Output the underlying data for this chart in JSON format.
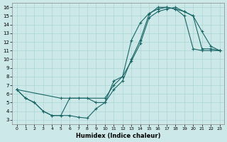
{
  "xlabel": "Humidex (Indice chaleur)",
  "bg_color": "#cce8e8",
  "line_color": "#1a6666",
  "grid_color": "#aad4d4",
  "xlim": [
    -0.5,
    23.5
  ],
  "ylim": [
    2.5,
    16.5
  ],
  "xticks": [
    0,
    1,
    2,
    3,
    4,
    5,
    6,
    7,
    8,
    9,
    10,
    11,
    12,
    13,
    14,
    15,
    16,
    17,
    18,
    19,
    20,
    21,
    22,
    23
  ],
  "yticks": [
    3,
    4,
    5,
    6,
    7,
    8,
    9,
    10,
    11,
    12,
    13,
    14,
    15,
    16
  ],
  "line1_x": [
    0,
    1,
    2,
    3,
    4,
    5,
    6,
    7,
    8,
    9,
    10,
    11,
    12,
    13,
    14,
    15,
    16,
    17,
    18,
    19,
    20,
    21,
    22,
    23
  ],
  "line1_y": [
    6.5,
    5.5,
    5.0,
    4.0,
    3.5,
    3.5,
    5.5,
    5.5,
    5.5,
    5.0,
    5.0,
    7.5,
    8.0,
    12.2,
    14.2,
    15.3,
    15.8,
    16.0,
    15.8,
    15.5,
    15.0,
    13.2,
    11.5,
    11.0
  ],
  "line2_x": [
    0,
    1,
    2,
    3,
    4,
    5,
    6,
    7,
    8,
    9,
    10,
    11,
    12,
    13,
    14,
    15,
    16,
    17,
    18,
    19,
    20,
    21,
    22,
    23
  ],
  "line2_y": [
    6.5,
    5.5,
    5.0,
    4.0,
    3.5,
    3.5,
    3.5,
    3.3,
    3.2,
    4.3,
    5.0,
    6.5,
    7.5,
    10.0,
    12.2,
    15.2,
    16.0,
    16.0,
    15.8,
    15.0,
    11.2,
    11.0,
    11.0,
    11.0
  ],
  "line3_x": [
    0,
    5,
    10,
    11,
    12,
    13,
    14,
    15,
    16,
    17,
    18,
    19,
    20,
    21,
    22,
    23
  ],
  "line3_y": [
    6.5,
    5.5,
    5.5,
    7.0,
    8.0,
    9.8,
    11.8,
    14.8,
    15.5,
    15.8,
    16.0,
    15.5,
    15.0,
    11.2,
    11.2,
    11.0
  ]
}
